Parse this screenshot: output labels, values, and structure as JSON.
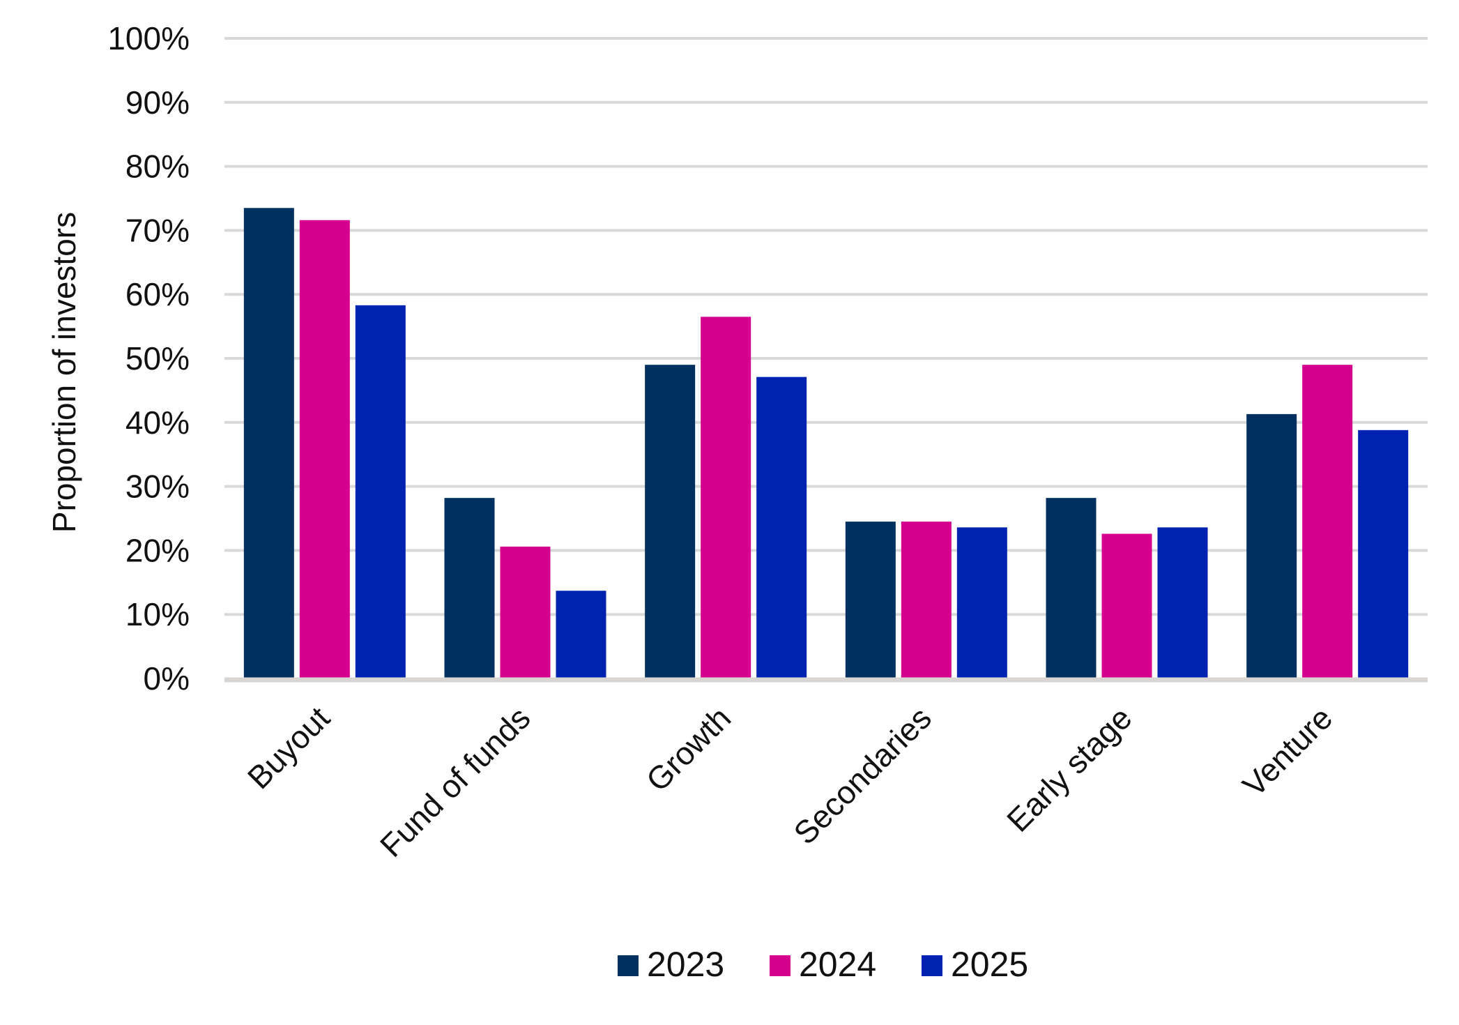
{
  "chart_data": {
    "type": "bar",
    "title": "",
    "xlabel": "",
    "ylabel": "Proportion of investors",
    "ylim": [
      0,
      100
    ],
    "yticks": [
      0,
      10,
      20,
      30,
      40,
      50,
      60,
      70,
      80,
      90,
      100
    ],
    "ytick_suffix": "%",
    "grid": true,
    "legend_position": "bottom",
    "categories": [
      "Buyout",
      "Fund of funds",
      "Growth",
      "Secondaries",
      "Early stage",
      "Venture"
    ],
    "series": [
      {
        "name": "2023",
        "color": "#00305f",
        "values": [
          73.5,
          28.2,
          49.0,
          24.5,
          28.2,
          41.3
        ]
      },
      {
        "name": "2024",
        "color": "#d6008f",
        "values": [
          71.6,
          20.6,
          56.5,
          24.5,
          22.6,
          49.0
        ]
      },
      {
        "name": "2025",
        "color": "#0022b0",
        "values": [
          58.3,
          13.7,
          47.1,
          23.6,
          23.6,
          38.8
        ]
      }
    ]
  }
}
